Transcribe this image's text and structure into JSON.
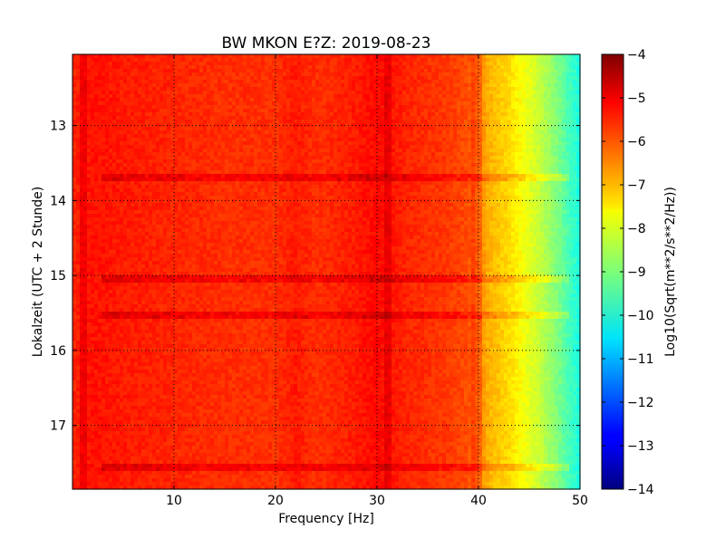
{
  "chart_data": {
    "type": "heatmap",
    "title": "BW MKON E?Z: 2019-08-23",
    "xlabel": "Frequency [Hz]",
    "ylabel": "Lokalzeit (UTC + 2 Stunde)",
    "xlim": [
      0,
      50
    ],
    "ylim": [
      12.05,
      17.85
    ],
    "y_inverted": true,
    "x_ticks": [
      10,
      20,
      30,
      40,
      50
    ],
    "x_tick_labels": [
      "10",
      "20",
      "30",
      "40",
      "50"
    ],
    "y_ticks": [
      13,
      14,
      15,
      16,
      17
    ],
    "y_tick_labels": [
      "13",
      "14",
      "15",
      "16",
      "17"
    ],
    "grid": true,
    "colormap": "jet",
    "colorbar": {
      "label": "Log10(Sqrt(m**2/s**2/Hz))",
      "range": [
        -14,
        -4
      ],
      "ticks": [
        -4,
        -5,
        -6,
        -7,
        -8,
        -9,
        -10,
        -11,
        -12,
        -13,
        -14
      ],
      "tick_labels": [
        "−4",
        "−5",
        "−6",
        "−7",
        "−8",
        "−9",
        "−10",
        "−11",
        "−12",
        "−13",
        "−14"
      ]
    },
    "spectrum_profile": {
      "frequency_hz": [
        0,
        2,
        5,
        10,
        15,
        20,
        22,
        24,
        26,
        28,
        30,
        31,
        33,
        35,
        37,
        38,
        39,
        40,
        41,
        42,
        43,
        44,
        45,
        46,
        47,
        48,
        49,
        50
      ],
      "level": [
        -5.6,
        -5.4,
        -5.5,
        -5.6,
        -5.7,
        -5.7,
        -5.5,
        -5.7,
        -5.6,
        -5.5,
        -5.3,
        -5.4,
        -5.6,
        -5.7,
        -5.8,
        -5.9,
        -6.0,
        -6.5,
        -7.0,
        -7.2,
        -7.4,
        -7.7,
        -8.0,
        -8.3,
        -8.7,
        -9.1,
        -9.6,
        -10.0
      ]
    },
    "bright_bands": [
      {
        "time": 13.7,
        "level": -5.0
      },
      {
        "time": 15.03,
        "level": -4.7
      },
      {
        "time": 15.53,
        "level": -4.9
      },
      {
        "time": 17.55,
        "level": -5.1
      }
    ],
    "dark_lines": [
      {
        "frequency_hz": 1.2
      },
      {
        "frequency_hz": 31.0
      },
      {
        "frequency_hz": 39.8
      }
    ]
  }
}
